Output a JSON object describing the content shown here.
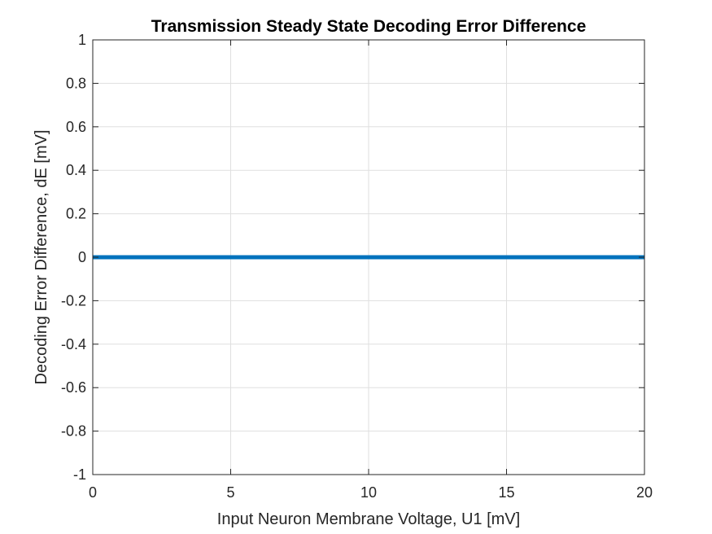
{
  "chart_data": {
    "type": "line",
    "title": "Transmission Steady State Decoding Error Difference",
    "xlabel": "Input Neuron Membrane Voltage, U1 [mV]",
    "ylabel": "Decoding Error Difference, dE [mV]",
    "xlim": [
      0,
      20
    ],
    "ylim": [
      -1,
      1
    ],
    "xticks": [
      0,
      5,
      10,
      15,
      20
    ],
    "xtick_labels": [
      "0",
      "5",
      "10",
      "15",
      "20"
    ],
    "yticks": [
      -1,
      -0.8,
      -0.6,
      -0.4,
      -0.2,
      0,
      0.2,
      0.4,
      0.6,
      0.8,
      1
    ],
    "ytick_labels": [
      "-1",
      "-0.8",
      "-0.6",
      "-0.4",
      "-0.2",
      "0",
      "0.2",
      "0.4",
      "0.6",
      "0.8",
      "1"
    ],
    "grid": true,
    "legend": "none",
    "series": [
      {
        "color": "#0072bd",
        "x": [
          0,
          20
        ],
        "y": [
          0,
          0
        ]
      }
    ]
  }
}
